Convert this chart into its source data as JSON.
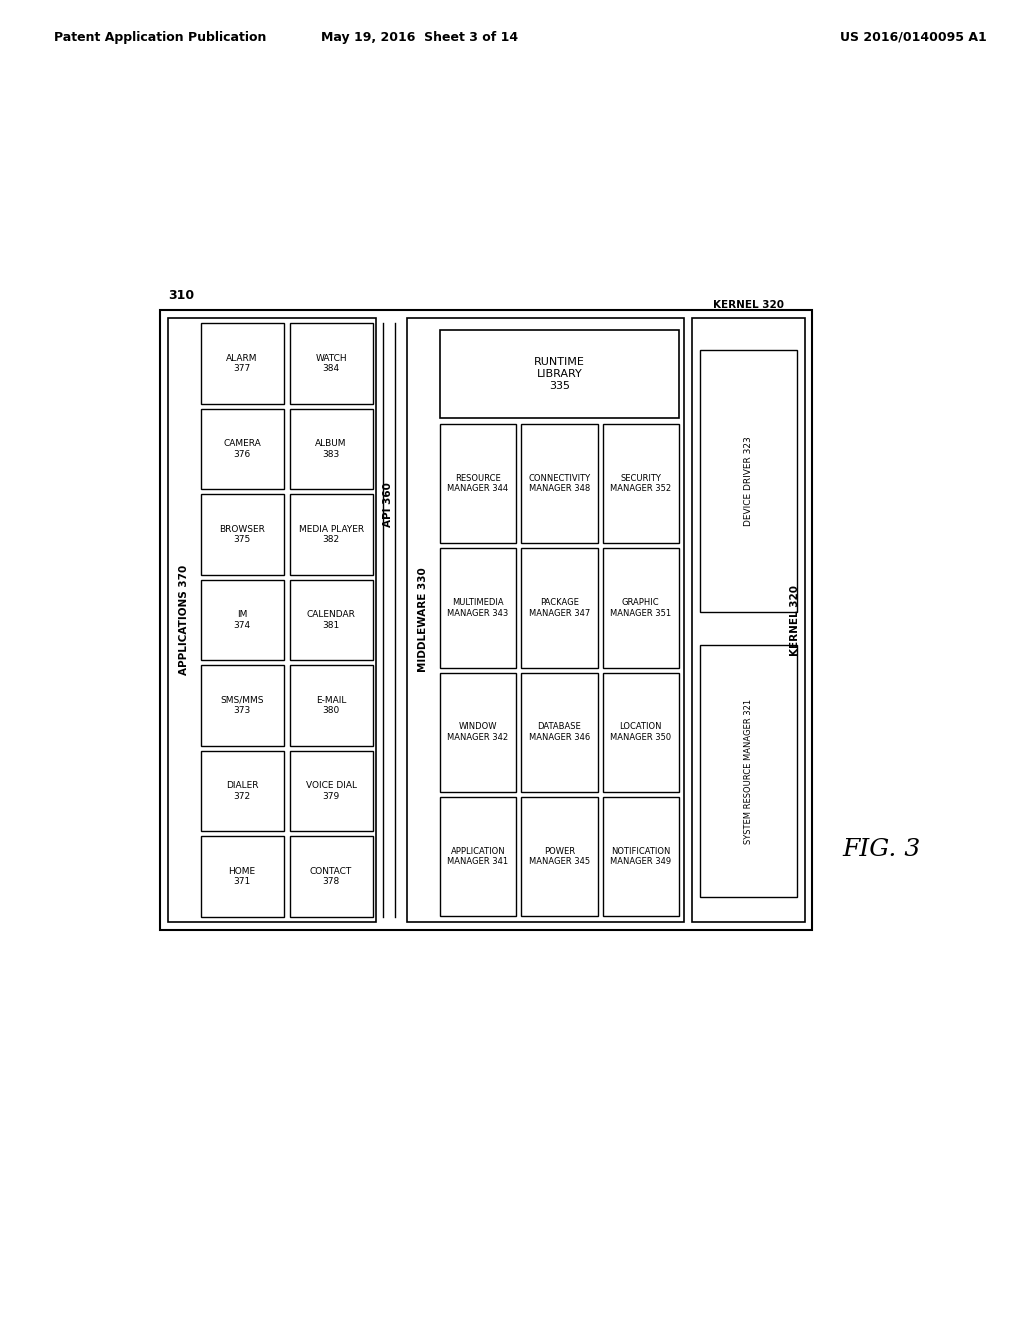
{
  "header_left": "Patent Application Publication",
  "header_mid": "May 19, 2016  Sheet 3 of 14",
  "header_right": "US 2016/0140095 A1",
  "fig_label": "FIG. 3",
  "outer_label": "310",
  "applications_label": "APPLICATIONS 370",
  "api_label": "API 360",
  "middleware_label": "MIDDLEWARE 330",
  "kernel_label": "KERNEL 320",
  "app_col1": [
    "ALARM\n377",
    "CAMERA\n376",
    "BROWSER\n375",
    "IM\n374",
    "SMS/MMS\n373",
    "DIALER\n372",
    "HOME\n371"
  ],
  "app_col2": [
    "WATCH\n384",
    "ALBUM\n383",
    "MEDIA PLAYER\n382",
    "CALENDAR\n381",
    "E-MAIL\n380",
    "VOICE DIAL\n379",
    "CONTACT\n378"
  ],
  "runtime_label": "RUNTIME\nLIBRARY\n335",
  "mw_rows": [
    [
      "APPLICATION\nMANAGER 341",
      "POWER\nMANAGER 345",
      "NOTIFICATION\nMANAGER 349"
    ],
    [
      "WINDOW\nMANAGER 342",
      "DATABASE\nMANAGER 346",
      "LOCATION\nMANAGER 350"
    ],
    [
      "MULTIMEDIA\nMANAGER 343",
      "PACKAGE\nMANAGER 347",
      "GRAPHIC\nMANAGER 351"
    ],
    [
      "RESOURCE\nMANAGER 344",
      "CONNECTIVITY\nMANAGER 348",
      "SECURITY\nMANAGER 352"
    ]
  ],
  "device_driver": "DEVICE DRIVER 323",
  "system_resource": "SYSTEM RESOURCE MANAGER 321",
  "bg_color": "#ffffff",
  "line_color": "#000000",
  "text_color": "#000000"
}
